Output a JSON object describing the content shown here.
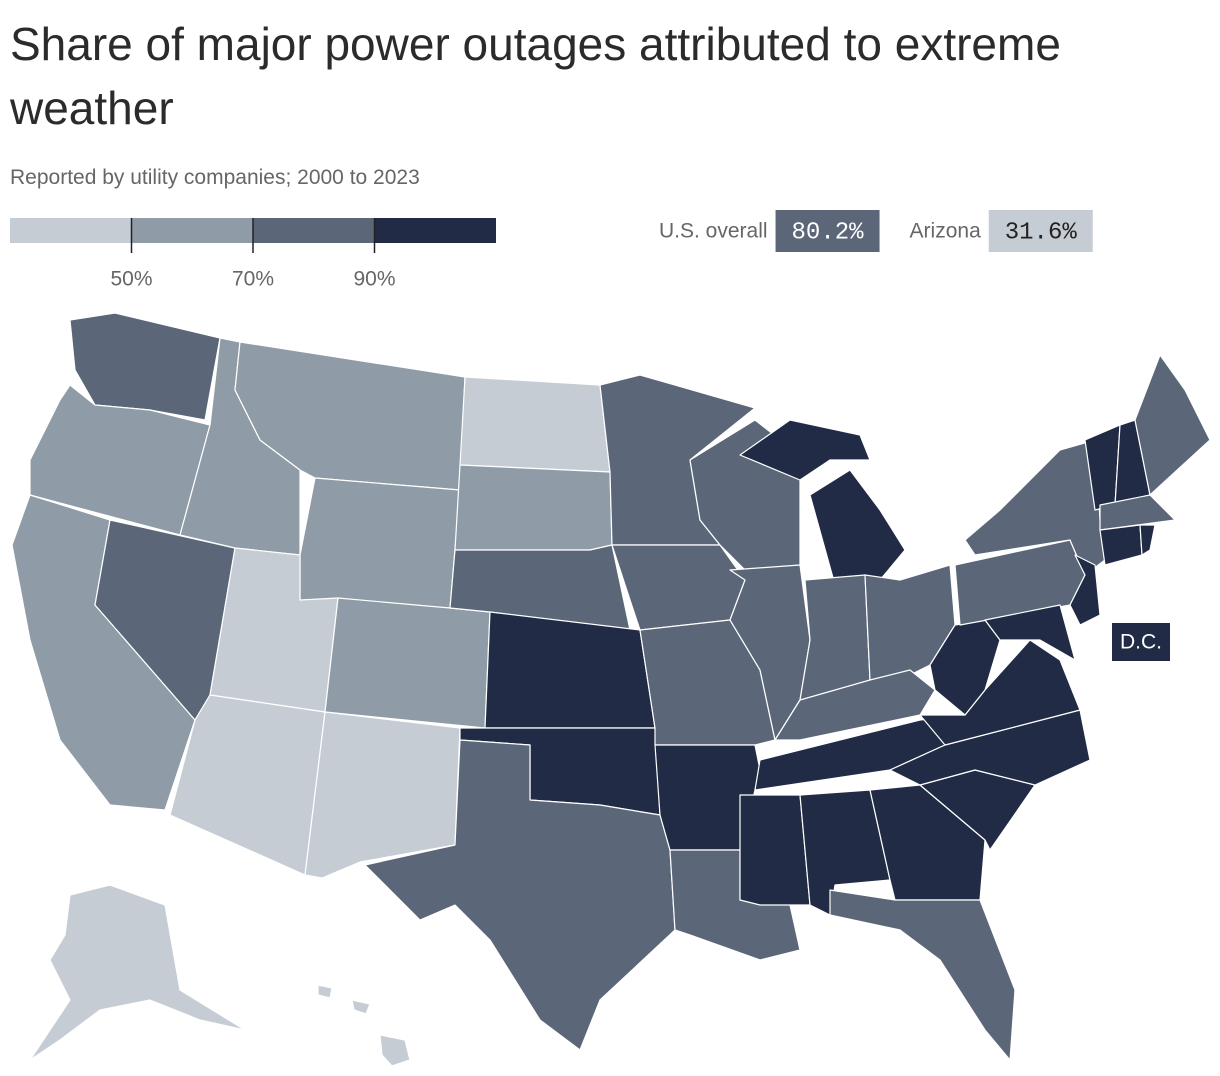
{
  "title": "Share of major power outages attributed to extreme weather",
  "subtitle": "Reported by utility companies; 2000 to 2023",
  "legend": {
    "colors": [
      "#c5ccd3",
      "#8f9ba6",
      "#5b6678",
      "#212b45"
    ],
    "xlim": [
      30,
      110
    ],
    "ticks": [
      {
        "value": 50,
        "label": "50%"
      },
      {
        "value": 70,
        "label": "70%"
      },
      {
        "value": 90,
        "label": "90%"
      }
    ]
  },
  "callouts": [
    {
      "label": "U.S. overall",
      "value": 80.2,
      "value_label": "80.2%"
    },
    {
      "label": "Arizona",
      "value": 31.6,
      "value_label": "31.6%"
    }
  ],
  "dc_label": "D.C."
}
